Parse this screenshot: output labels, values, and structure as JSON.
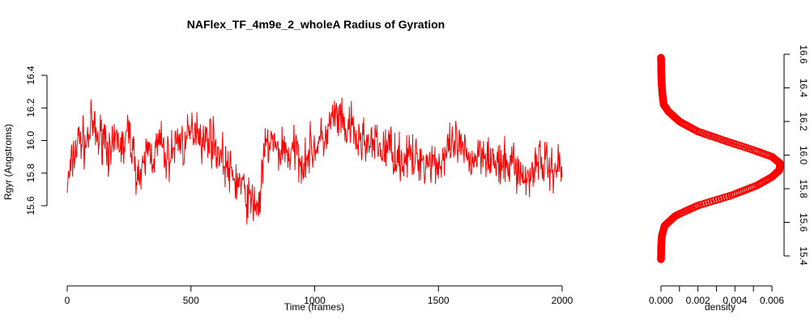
{
  "chart_data": [
    {
      "type": "line",
      "title": "NAFlex_TF_4m9e_2_wholeA Radius of Gyration",
      "xlabel": "Time (frames)",
      "ylabel": "Rgyr (Angstroms)",
      "xlim": [
        0,
        2000
      ],
      "ylim": [
        15.45,
        16.5
      ],
      "x_ticks": [
        "0",
        "500",
        "1000",
        "1500",
        "2000"
      ],
      "y_ticks": [
        "15.6",
        "15.8",
        "16.0",
        "16.2",
        "16.4"
      ],
      "color": "#ff0000",
      "grid": false,
      "series": [
        {
          "x": [
            0,
            25,
            50,
            75,
            100,
            125,
            150,
            175,
            200,
            225,
            250,
            275,
            300,
            325,
            350,
            375,
            400,
            425,
            450,
            475,
            500,
            525,
            550,
            575,
            600,
            625,
            650,
            675,
            700,
            725,
            750,
            775,
            800,
            825,
            850,
            875,
            900,
            925,
            950,
            975,
            1000,
            1025,
            1050,
            1075,
            1100,
            1125,
            1150,
            1175,
            1200,
            1225,
            1250,
            1275,
            1300,
            1325,
            1350,
            1375,
            1400,
            1425,
            1450,
            1475,
            1500,
            1525,
            1550,
            1575,
            1600,
            1625,
            1650,
            1675,
            1700,
            1725,
            1750,
            1775,
            1800,
            1825,
            1850,
            1875,
            1900,
            1925,
            1950,
            1975,
            2000
          ],
          "values": [
            15.72,
            15.9,
            16.02,
            15.97,
            16.1,
            16.0,
            16.05,
            15.88,
            16.02,
            15.95,
            16.06,
            15.85,
            15.75,
            15.96,
            15.9,
            16.0,
            15.88,
            15.93,
            16.02,
            15.96,
            16.05,
            16.1,
            15.98,
            16.04,
            15.95,
            15.9,
            15.82,
            15.76,
            15.74,
            15.65,
            15.62,
            15.6,
            15.95,
            16.0,
            15.92,
            15.97,
            15.9,
            15.95,
            15.86,
            15.93,
            15.96,
            15.99,
            16.03,
            16.15,
            16.12,
            16.05,
            16.08,
            15.98,
            16.02,
            15.95,
            15.98,
            15.93,
            15.97,
            15.92,
            15.88,
            15.91,
            15.87,
            15.9,
            15.86,
            15.89,
            15.85,
            15.9,
            15.94,
            15.98,
            15.92,
            15.88,
            15.9,
            15.95,
            15.92,
            15.86,
            15.83,
            15.84,
            15.88,
            15.81,
            15.75,
            15.8,
            15.9,
            15.86,
            15.83,
            15.84,
            15.85
          ]
        }
      ]
    },
    {
      "type": "line",
      "title": "",
      "xlabel": "density",
      "ylabel": "",
      "xlim": [
        0,
        0.0065
      ],
      "ylim": [
        15.35,
        16.6
      ],
      "x_ticks": [
        "0.000",
        "0.002",
        "0.004",
        "0.006"
      ],
      "y_ticks": [
        "15.4",
        "15.6",
        "15.8",
        "16.0",
        "16.2",
        "16.4",
        "16.6"
      ],
      "color": "#ff0000",
      "marker": "circle",
      "grid": false,
      "series": [
        {
          "y": [
            15.38,
            15.45,
            15.52,
            15.58,
            15.64,
            15.7,
            15.76,
            15.82,
            15.87,
            15.91,
            15.95,
            15.99,
            16.03,
            16.08,
            16.14,
            16.2,
            16.26,
            16.3,
            16.36,
            16.42,
            16.48,
            16.54,
            16.58
          ],
          "values": [
            0.0,
            1e-05,
            5e-05,
            0.0002,
            0.0008,
            0.002,
            0.0038,
            0.0052,
            0.006,
            0.0064,
            0.00645,
            0.006,
            0.005,
            0.0036,
            0.002,
            0.001,
            0.0004,
            0.00015,
            8e-05,
            4e-05,
            2e-05,
            1e-05,
            0.0
          ]
        }
      ]
    }
  ]
}
